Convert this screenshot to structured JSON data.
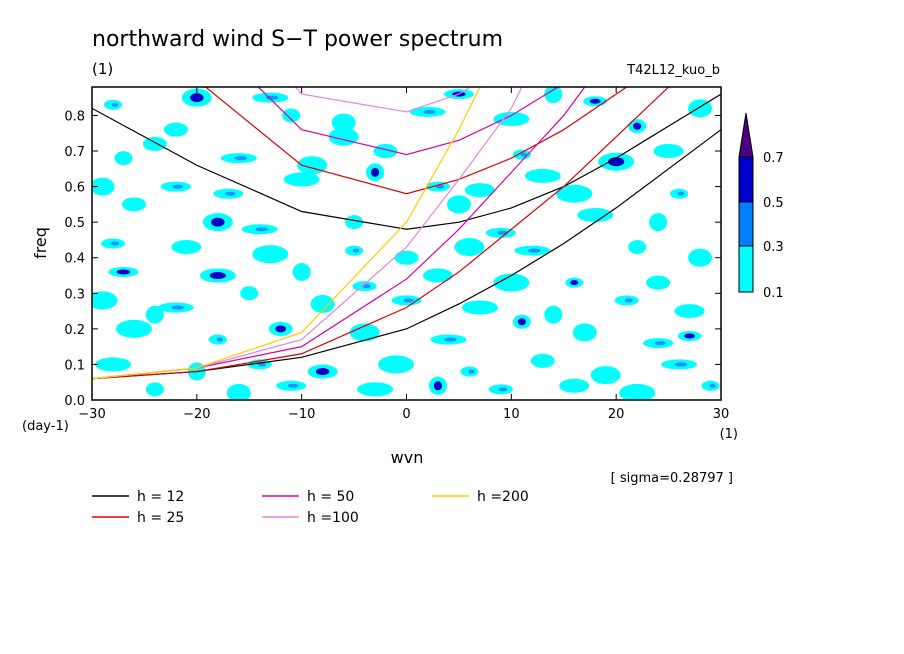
{
  "chart_data": {
    "type": "heatmap",
    "title": "northward wind S−T power spectrum",
    "unit_label": "(1)",
    "run_label": "T42L12_kuo_b",
    "xlabel": "wvn",
    "ylabel": "freq",
    "x_unit": "(1)",
    "y_unit": "(day-1)",
    "xlim": [
      -30,
      30
    ],
    "ylim": [
      0,
      0.88
    ],
    "x_ticks": [
      {
        "value": -30,
        "label": "−30"
      },
      {
        "value": -20,
        "label": "−20"
      },
      {
        "value": -10,
        "label": "−10"
      },
      {
        "value": 0,
        "label": "0"
      },
      {
        "value": 10,
        "label": "10"
      },
      {
        "value": 20,
        "label": "20"
      },
      {
        "value": 30,
        "label": "30"
      }
    ],
    "y_ticks": [
      {
        "value": 0,
        "label": "0.0"
      },
      {
        "value": 0.1,
        "label": "0.1"
      },
      {
        "value": 0.2,
        "label": "0.2"
      },
      {
        "value": 0.3,
        "label": "0.3"
      },
      {
        "value": 0.4,
        "label": "0.4"
      },
      {
        "value": 0.5,
        "label": "0.5"
      },
      {
        "value": 0.6,
        "label": "0.6"
      },
      {
        "value": 0.7,
        "label": "0.7"
      },
      {
        "value": 0.8,
        "label": "0.8"
      }
    ],
    "sigma_text": "[ sigma=0.28797 ]",
    "colorbar": {
      "levels": [
        "0.1",
        "0.3",
        "0.5",
        "0.7"
      ],
      "colors": [
        "#00ffff",
        "#0080ff",
        "#0000cc",
        "#4b0082"
      ]
    },
    "field_color_low": "#00ffff",
    "field_color_mid": "#1e90ff",
    "field_color_high": "#0000c8",
    "contour_patches": [
      [
        -28,
        0.83,
        1
      ],
      [
        -24,
        0.72,
        1
      ],
      [
        -20,
        0.85,
        2
      ],
      [
        -13,
        0.85,
        1
      ],
      [
        -11,
        0.8,
        1
      ],
      [
        -6,
        0.78,
        1
      ],
      [
        5,
        0.86,
        2
      ],
      [
        10,
        0.79,
        1
      ],
      [
        14,
        0.86,
        1
      ],
      [
        18,
        0.84,
        2
      ],
      [
        25,
        0.7,
        1
      ],
      [
        20,
        0.67,
        2
      ],
      [
        11,
        0.69,
        1
      ],
      [
        -2,
        0.7,
        1
      ],
      [
        -9,
        0.66,
        1
      ],
      [
        -16,
        0.68,
        1
      ],
      [
        -27,
        0.68,
        1
      ],
      [
        -29,
        0.6,
        1
      ],
      [
        -22,
        0.6,
        1
      ],
      [
        -10,
        0.62,
        1
      ],
      [
        -3,
        0.64,
        2
      ],
      [
        3,
        0.6,
        1
      ],
      [
        7,
        0.59,
        1
      ],
      [
        16,
        0.58,
        1
      ],
      [
        26,
        0.58,
        1
      ],
      [
        -26,
        0.55,
        1
      ],
      [
        -18,
        0.5,
        2
      ],
      [
        -14,
        0.48,
        1
      ],
      [
        -5,
        0.5,
        1
      ],
      [
        5,
        0.55,
        1
      ],
      [
        9,
        0.47,
        1
      ],
      [
        18,
        0.52,
        1
      ],
      [
        24,
        0.5,
        1
      ],
      [
        -28,
        0.44,
        1
      ],
      [
        -21,
        0.43,
        1
      ],
      [
        -13,
        0.41,
        1
      ],
      [
        -5,
        0.42,
        1
      ],
      [
        0,
        0.4,
        1
      ],
      [
        6,
        0.43,
        1
      ],
      [
        12,
        0.42,
        1
      ],
      [
        22,
        0.43,
        1
      ],
      [
        28,
        0.4,
        1
      ],
      [
        -27,
        0.36,
        2
      ],
      [
        -18,
        0.35,
        2
      ],
      [
        -10,
        0.36,
        1
      ],
      [
        -4,
        0.32,
        1
      ],
      [
        3,
        0.35,
        1
      ],
      [
        10,
        0.33,
        1
      ],
      [
        16,
        0.33,
        2
      ],
      [
        24,
        0.33,
        1
      ],
      [
        -29,
        0.28,
        1
      ],
      [
        -22,
        0.26,
        1
      ],
      [
        -15,
        0.3,
        1
      ],
      [
        -8,
        0.27,
        1
      ],
      [
        0,
        0.28,
        1
      ],
      [
        7,
        0.26,
        1
      ],
      [
        14,
        0.24,
        1
      ],
      [
        21,
        0.28,
        1
      ],
      [
        27,
        0.25,
        1
      ],
      [
        -26,
        0.2,
        1
      ],
      [
        -18,
        0.17,
        1
      ],
      [
        -12,
        0.2,
        2
      ],
      [
        -4,
        0.19,
        1
      ],
      [
        4,
        0.17,
        1
      ],
      [
        11,
        0.22,
        2
      ],
      [
        17,
        0.19,
        1
      ],
      [
        24,
        0.16,
        1
      ],
      [
        -28,
        0.1,
        1
      ],
      [
        -20,
        0.08,
        1
      ],
      [
        -14,
        0.1,
        1
      ],
      [
        -8,
        0.08,
        2
      ],
      [
        -1,
        0.1,
        1
      ],
      [
        6,
        0.08,
        1
      ],
      [
        13,
        0.11,
        1
      ],
      [
        19,
        0.07,
        1
      ],
      [
        26,
        0.1,
        1
      ],
      [
        -24,
        0.03,
        1
      ],
      [
        -16,
        0.02,
        1
      ],
      [
        -11,
        0.04,
        1
      ],
      [
        -3,
        0.03,
        1
      ],
      [
        3,
        0.04,
        2
      ],
      [
        9,
        0.03,
        1
      ],
      [
        16,
        0.04,
        1
      ],
      [
        22,
        0.02,
        1
      ],
      [
        29,
        0.04,
        1
      ],
      [
        -22,
        0.76,
        1
      ],
      [
        -6,
        0.74,
        1
      ],
      [
        2,
        0.81,
        1
      ],
      [
        22,
        0.77,
        2
      ],
      [
        28,
        0.82,
        1
      ],
      [
        -17,
        0.58,
        1
      ],
      [
        13,
        0.63,
        1
      ],
      [
        -24,
        0.24,
        1
      ],
      [
        27,
        0.18,
        2
      ]
    ],
    "series": [
      {
        "name": "h = 12",
        "color": "#000000",
        "h": 12
      },
      {
        "name": "h = 25",
        "color": "#dd0000",
        "h": 25
      },
      {
        "name": "h = 50",
        "color": "#dd00aa",
        "h": 50
      },
      {
        "name": "h =100",
        "color": "#dd88dd",
        "h": 100
      },
      {
        "name": "h =200",
        "color": "#ffcc00",
        "h": 200
      }
    ],
    "dispersion_curves": [
      {
        "h": 12,
        "x": [
          -30,
          -20,
          -10,
          0,
          5,
          10,
          15,
          20,
          25,
          30
        ],
        "y_lower": [
          0.06,
          0.08,
          0.12,
          0.2,
          0.27,
          0.35,
          0.44,
          0.54,
          0.65,
          0.76
        ],
        "y_upper": [
          0.82,
          0.66,
          0.53,
          0.48,
          0.5,
          0.54,
          0.6,
          0.68,
          0.77,
          0.86
        ]
      },
      {
        "h": 25,
        "x": [
          -30,
          -20,
          -10,
          0,
          5,
          10,
          15,
          20,
          25
        ],
        "y_lower": [
          0.06,
          0.08,
          0.13,
          0.26,
          0.36,
          0.48,
          0.6,
          0.74,
          0.88
        ],
        "y_upper": [
          1.15,
          0.9,
          0.66,
          0.58,
          0.62,
          0.68,
          0.76,
          0.86,
          0.96
        ]
      },
      {
        "h": 50,
        "x": [
          -30,
          -20,
          -10,
          0,
          5,
          10,
          15,
          17
        ],
        "y_lower": [
          0.06,
          0.09,
          0.15,
          0.34,
          0.48,
          0.64,
          0.8,
          0.88
        ],
        "y_upper": [
          1.3,
          1.05,
          0.76,
          0.69,
          0.73,
          0.8,
          0.89,
          0.93
        ]
      },
      {
        "h": 100,
        "x": [
          -30,
          -20,
          -10,
          0,
          5,
          10,
          11
        ],
        "y_lower": [
          0.06,
          0.09,
          0.17,
          0.43,
          0.62,
          0.82,
          0.88
        ],
        "y_upper": [
          1.5,
          1.2,
          0.86,
          0.81,
          0.86,
          0.95,
          0.97
        ]
      },
      {
        "h": 200,
        "x": [
          -30,
          -20,
          -10,
          0,
          5,
          7
        ],
        "y_lower": [
          0.06,
          0.09,
          0.19,
          0.5,
          0.76,
          0.88
        ],
        "y_upper": []
      }
    ]
  }
}
